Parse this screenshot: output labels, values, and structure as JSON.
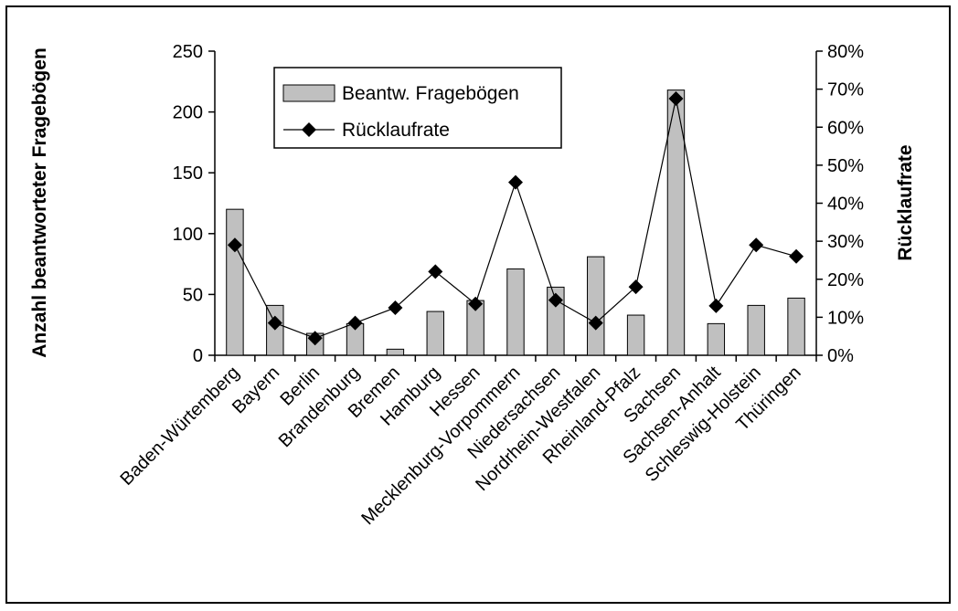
{
  "chart_data": {
    "type": "bar",
    "categories": [
      "Baden-Würtemberg",
      "Bayern",
      "Berlin",
      "Brandenburg",
      "Bremen",
      "Hamburg",
      "Hessen",
      "Mecklenburg-Vorpommern",
      "Niedersachsen",
      "Nordrhein-Westfalen",
      "Rheinland-Pfalz",
      "Sachsen",
      "Sachsen-Anhalt",
      "Schleswig-Holstein",
      "Thüringen"
    ],
    "series": [
      {
        "name": "Beantw. Fragebögen",
        "type": "bar",
        "axis": "left",
        "values": [
          120,
          41,
          18,
          26,
          5,
          36,
          45,
          71,
          56,
          81,
          33,
          218,
          26,
          41,
          47
        ]
      },
      {
        "name": "Rücklaufrate",
        "type": "line",
        "axis": "right",
        "marker": "diamond",
        "values": [
          0.29,
          0.085,
          0.045,
          0.085,
          0.125,
          0.22,
          0.135,
          0.455,
          0.145,
          0.085,
          0.18,
          0.675,
          0.13,
          0.29,
          0.26
        ]
      }
    ],
    "ylabel": "Anzahl beantworteter Fragebögen",
    "y2label": "Rücklaufrate",
    "ylim": [
      0,
      250
    ],
    "y2lim": [
      0,
      0.8
    ],
    "yticks": [
      "0",
      "50",
      "100",
      "150",
      "200",
      "250"
    ],
    "y2ticks": [
      "0%",
      "10%",
      "20%",
      "30%",
      "40%",
      "50%",
      "60%",
      "70%",
      "80%"
    ],
    "grid": false,
    "legend_position": "top-left",
    "colors": {
      "bar_fill": "#c0c0c0",
      "bar_stroke": "#000000",
      "line": "#000000",
      "marker": "#000000"
    }
  }
}
